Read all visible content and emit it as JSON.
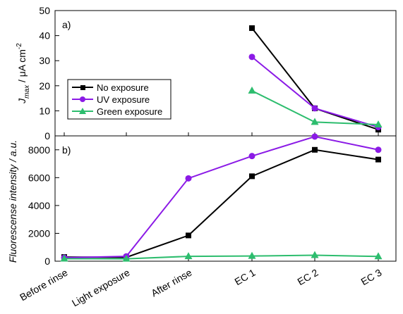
{
  "chart_data": [
    {
      "type": "line",
      "panel_label": "a)",
      "categories": [
        "Before rinse",
        "Light exposure",
        "After rinse",
        "EC 1",
        "EC 2",
        "EC 3"
      ],
      "ylabel_parts": {
        "main": "J",
        "sub": "max",
        "rest": " / μA cm",
        "sup": "-2"
      },
      "ylim": [
        0,
        50
      ],
      "yticks": [
        0,
        10,
        20,
        30,
        40,
        50
      ],
      "legend": {
        "placement": "center-left",
        "entries": [
          "No exposure",
          "UV exposure",
          "Green exposure"
        ]
      },
      "series": [
        {
          "name": "No exposure",
          "color": "#000000",
          "marker": "square",
          "values": [
            null,
            null,
            null,
            43,
            11,
            2.5
          ]
        },
        {
          "name": "UV exposure",
          "color": "#8b1ae6",
          "marker": "circle",
          "values": [
            null,
            null,
            null,
            31.5,
            11,
            3.5
          ]
        },
        {
          "name": "Green exposure",
          "color": "#2dbd6e",
          "marker": "triangle",
          "values": [
            null,
            null,
            null,
            18,
            5.5,
            4.5
          ]
        }
      ]
    },
    {
      "type": "line",
      "panel_label": "b)",
      "categories": [
        "Before rinse",
        "Light exposure",
        "After rinse",
        "EC 1",
        "EC 2",
        "EC 3"
      ],
      "ylabel": "Fluorescense intensity / a.u.",
      "ylim": [
        0,
        9000
      ],
      "yticks": [
        0,
        2000,
        4000,
        6000,
        8000
      ],
      "series": [
        {
          "name": "No exposure",
          "color": "#000000",
          "marker": "square",
          "values": [
            300,
            280,
            1850,
            6100,
            8000,
            7300
          ]
        },
        {
          "name": "UV exposure",
          "color": "#8b1ae6",
          "marker": "circle",
          "values": [
            250,
            350,
            5950,
            7550,
            8950,
            8000
          ]
        },
        {
          "name": "Green exposure",
          "color": "#2dbd6e",
          "marker": "triangle",
          "values": [
            180,
            170,
            350,
            370,
            430,
            340
          ]
        }
      ]
    }
  ]
}
